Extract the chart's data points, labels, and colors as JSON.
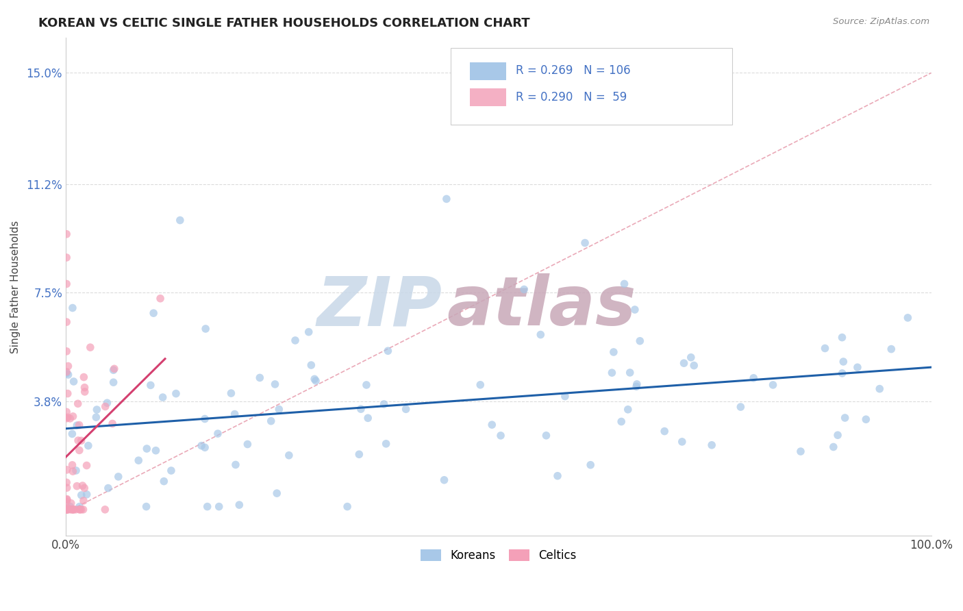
{
  "title": "KOREAN VS CELTIC SINGLE FATHER HOUSEHOLDS CORRELATION CHART",
  "source": "Source: ZipAtlas.com",
  "ylabel": "Single Father Households",
  "xlim": [
    0.0,
    1.0
  ],
  "ylim": [
    -0.008,
    0.162
  ],
  "x_tick_labels": [
    "0.0%",
    "100.0%"
  ],
  "y_tick_values": [
    0.038,
    0.075,
    0.112,
    0.15
  ],
  "y_tick_labels": [
    "3.8%",
    "7.5%",
    "11.2%",
    "15.0%"
  ],
  "korean_color": "#a8c8e8",
  "celtic_color": "#f4a0b8",
  "korean_line_color": "#1e5fa8",
  "celtic_line_color": "#d44070",
  "diagonal_color": "#e8a0b0",
  "legend_box_korean": "#a8c8e8",
  "legend_box_celtic": "#f4b0c4",
  "R_korean": 0.269,
  "N_korean": 106,
  "R_celtic": 0.29,
  "N_celtic": 59,
  "background_color": "#ffffff",
  "grid_color": "#d8d8d8",
  "axis_color": "#cccccc",
  "title_color": "#222222",
  "source_color": "#888888",
  "ylabel_color": "#444444",
  "tick_color_x": "#444444",
  "tick_color_y": "#4472c4",
  "legend_text_color": "#4472c4",
  "watermark_zip_color": "#c8d8e8",
  "watermark_atlas_color": "#c8a8b8"
}
